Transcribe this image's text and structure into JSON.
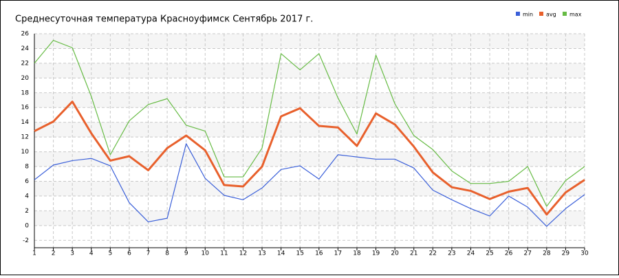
{
  "chart_data": {
    "type": "line",
    "title": "Среднесуточная температура Красноуфимск  Сентябрь 2017 г.",
    "x": [
      1,
      2,
      3,
      4,
      5,
      6,
      7,
      8,
      9,
      10,
      11,
      12,
      13,
      14,
      15,
      16,
      17,
      18,
      19,
      20,
      21,
      22,
      23,
      24,
      25,
      26,
      27,
      28,
      29,
      30
    ],
    "xlim": [
      1,
      30
    ],
    "series": [
      {
        "name": "min",
        "color": "#3a5fd9",
        "values": [
          6.2,
          8.2,
          8.8,
          9.1,
          8.1,
          3.1,
          0.5,
          1.0,
          11.1,
          6.4,
          4.1,
          3.5,
          5.1,
          7.6,
          8.1,
          6.3,
          9.6,
          9.3,
          9.0,
          9.0,
          7.8,
          4.8,
          3.5,
          2.3,
          1.3,
          4.0,
          2.5,
          -0.1,
          2.3,
          4.2
        ]
      },
      {
        "name": "avg",
        "color": "#e8602c",
        "values": [
          12.8,
          14.1,
          16.8,
          12.5,
          8.8,
          9.4,
          7.5,
          10.5,
          12.2,
          10.2,
          5.5,
          5.3,
          8.0,
          14.8,
          15.9,
          13.5,
          13.3,
          10.8,
          15.2,
          13.7,
          10.7,
          7.2,
          5.2,
          4.7,
          3.6,
          4.6,
          5.1,
          1.5,
          4.5,
          6.2
        ]
      },
      {
        "name": "max",
        "color": "#66bb44",
        "values": [
          22.0,
          25.1,
          24.1,
          17.5,
          9.6,
          14.2,
          16.4,
          17.2,
          13.6,
          12.8,
          6.6,
          6.6,
          10.5,
          23.3,
          21.1,
          23.3,
          17.3,
          12.4,
          23.1,
          16.5,
          12.2,
          10.3,
          7.4,
          5.7,
          5.7,
          6.0,
          8.0,
          2.6,
          6.1,
          8.0
        ]
      }
    ],
    "ylim": [
      -3,
      26
    ],
    "yticks": [
      -2,
      0,
      2,
      4,
      6,
      8,
      10,
      12,
      14,
      16,
      18,
      20,
      22,
      24,
      26
    ],
    "grid": true,
    "legend": "top-right"
  }
}
